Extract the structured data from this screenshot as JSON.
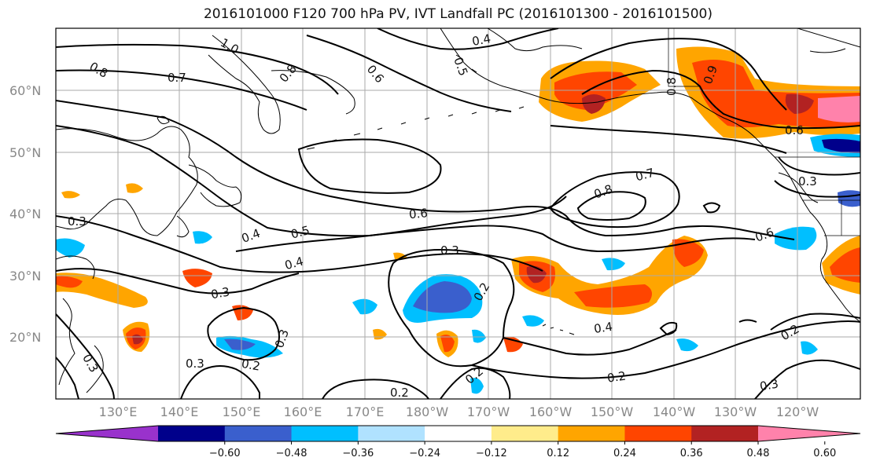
{
  "title": "2016101000 F120 700 hPa PV, IVT Landfall PC (2016101300 - 2016101500)",
  "map": {
    "lat_labels": [
      "60°N",
      "50°N",
      "40°N",
      "30°N",
      "20°N"
    ],
    "lon_labels": [
      "130°E",
      "140°E",
      "150°E",
      "160°E",
      "170°E",
      "180°W",
      "170°W",
      "160°W",
      "150°W",
      "140°W",
      "130°W",
      "120°W"
    ],
    "gridlines": true,
    "contour_labels": [
      "1.0",
      "0.8",
      "0.7",
      "0.8",
      "0.6",
      "0.5",
      "0.4",
      "0.7",
      "0.8",
      "0.9",
      "0.6",
      "0.4",
      "0.3",
      "0.6",
      "0.5",
      "0.4",
      "0.3",
      "0.3",
      "0.2",
      "0.3",
      "0.3",
      "0.2",
      "0.2",
      "0.2",
      "0.4",
      "0.2",
      "0.3",
      "0.2",
      "0.3",
      "0.8",
      "0.6",
      "0.3"
    ]
  },
  "colorbar": {
    "ticks": [
      "−0.60",
      "−0.48",
      "−0.36",
      "−0.24",
      "−0.12",
      "0.12",
      "0.24",
      "0.36",
      "0.48",
      "0.60"
    ],
    "colors": [
      "#9932cc",
      "#00008b",
      "#3a5fcd",
      "#00bfff",
      "#b0e2ff",
      "#ffffff",
      "#ffec8b",
      "#ffa500",
      "#ff4500",
      "#b22222",
      "#ff82ab"
    ]
  }
}
